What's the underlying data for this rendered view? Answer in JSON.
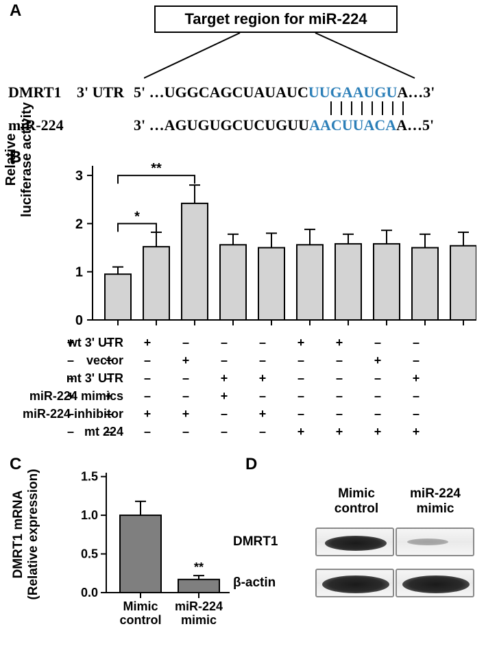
{
  "panelA": {
    "label": "A",
    "targetBoxText": "Target region for miR-224",
    "dmrt1Label": "DMRT1",
    "utrLabel": "3' UTR",
    "mirLabel": "miR-224",
    "seq1_5p": "5' …UGGCAGCUAUAUC",
    "seq1_seed": "UUGAAUGU",
    "seq1_3p": "A…3'",
    "seq2_5p": "3' …AGUGUGCUCUGUU",
    "seq2_seed": "AACUUACA",
    "seq2_3p": "A…5'",
    "seedColor": "#2c7fb8"
  },
  "panelB": {
    "label": "B",
    "ylabel_line1": "Relative",
    "ylabel_line2": "luciferase activity",
    "ylim": [
      0,
      3.2
    ],
    "yticks": [
      0,
      1,
      2,
      3
    ],
    "ytickLabels": [
      "0",
      "1",
      "2",
      "3"
    ],
    "barColor": "#d3d3d3",
    "barWidth": 38,
    "barGap": 56,
    "bars": [
      {
        "value": 0.95,
        "err": 0.15
      },
      {
        "value": 1.52,
        "err": 0.3
      },
      {
        "value": 2.42,
        "err": 0.38
      },
      {
        "value": 1.56,
        "err": 0.22
      },
      {
        "value": 1.5,
        "err": 0.3
      },
      {
        "value": 1.56,
        "err": 0.32
      },
      {
        "value": 1.58,
        "err": 0.2
      },
      {
        "value": 1.58,
        "err": 0.28
      },
      {
        "value": 1.5,
        "err": 0.28
      },
      {
        "value": 1.54,
        "err": 0.28
      }
    ],
    "sig": [
      {
        "from": 0,
        "to": 1,
        "label": "*",
        "y": 2.0
      },
      {
        "from": 0,
        "to": 2,
        "label": "**",
        "y": 3.0
      }
    ],
    "conditions": {
      "labels": [
        "wt 3' UTR",
        "vector",
        "mt 3' UTR",
        "miR-224 mimics",
        "miR-224 inhibitor",
        "mt 224"
      ],
      "matrix": [
        [
          "+",
          "–",
          "+",
          "–",
          "–",
          "–",
          "+",
          "+",
          "–",
          "–"
        ],
        [
          "–",
          "+",
          "–",
          "+",
          "–",
          "–",
          "–",
          "–",
          "+",
          "–"
        ],
        [
          "–",
          "–",
          "–",
          "–",
          "+",
          "+",
          "–",
          "–",
          "–",
          "+"
        ],
        [
          "+",
          "+",
          "–",
          "–",
          "+",
          "–",
          "–",
          "–",
          "–",
          "–"
        ],
        [
          "–",
          "–",
          "+",
          "+",
          "–",
          "+",
          "–",
          "–",
          "–",
          "–"
        ],
        [
          "–",
          "–",
          "–",
          "–",
          "–",
          "–",
          "+",
          "+",
          "+",
          "+"
        ]
      ]
    }
  },
  "panelC": {
    "label": "C",
    "ylabel_line1": "DMRT1 mRNA",
    "ylabel_line2": "(Relative expression)",
    "ylim": [
      0,
      1.55
    ],
    "yticks": [
      0,
      0.5,
      1.0,
      1.5
    ],
    "ytickLabels": [
      "0.0",
      "0.5",
      "1.0",
      "1.5"
    ],
    "barColor": "#7f7f7f",
    "barWidth": 60,
    "bars": [
      {
        "label_l1": "Mimic",
        "label_l2": "control",
        "value": 1.0,
        "err": 0.18,
        "sig": ""
      },
      {
        "label_l1": "miR-224",
        "label_l2": "mimic",
        "value": 0.17,
        "err": 0.05,
        "sig": "**"
      }
    ]
  },
  "panelD": {
    "label": "D",
    "col1_l1": "Mimic",
    "col1_l2": "control",
    "col2_l1": "miR-224",
    "col2_l2": "mimic",
    "row1": "DMRT1",
    "row2": "β-actin"
  }
}
